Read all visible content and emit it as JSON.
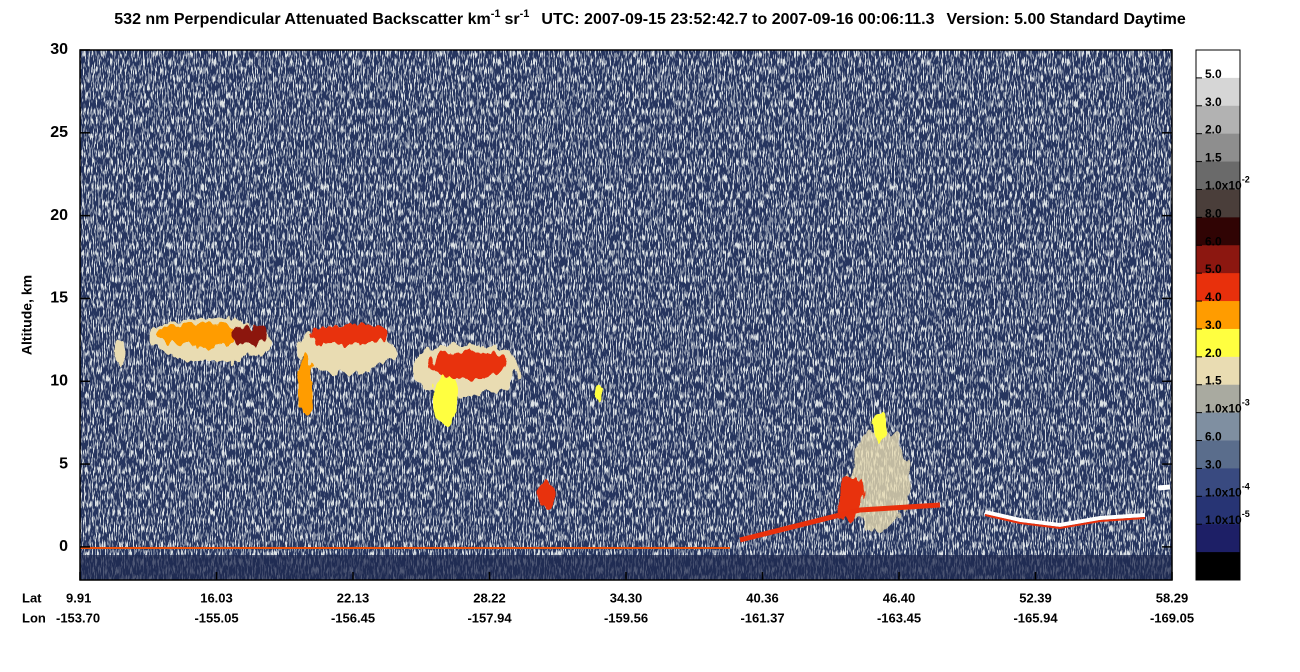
{
  "chart_data": {
    "type": "curtain",
    "title": {
      "main": "532 nm Perpendicular Attenuated Backscatter km",
      "exp1": "-1",
      "unit2": "sr",
      "exp2": "-1",
      "utc": "UTC: 2007-09-15 23:52:42.7 to 2007-09-16 00:06:11.3",
      "version": "Version: 5.00 Standard Daytime"
    },
    "ylabel": "Altitude, km",
    "ylim": [
      -2,
      30
    ],
    "yticks": [
      0,
      5,
      10,
      15,
      20,
      25,
      30
    ],
    "x": {
      "lat_label": "Lat",
      "lon_label": "Lon",
      "lat": [
        "9.91",
        "16.03",
        "22.13",
        "28.22",
        "34.30",
        "40.36",
        "46.40",
        "52.39",
        "58.29"
      ],
      "lon": [
        "-153.70",
        "-155.05",
        "-156.45",
        "-157.94",
        "-159.56",
        "-161.37",
        "-163.45",
        "-165.94",
        "-169.05"
      ]
    },
    "colorbar": {
      "colors": [
        "#ffffff",
        "#d6d6d6",
        "#b2b2b2",
        "#8e8e8e",
        "#6a6a6a",
        "#4a3e3a",
        "#300404",
        "#8c1710",
        "#e8300c",
        "#ff9c00",
        "#ffff40",
        "#e9dcb2",
        "#a9aaa0",
        "#7f8fa1",
        "#5a6d8c",
        "#394a80",
        "#273474",
        "#1d1f66",
        "#000000"
      ],
      "labels": [
        {
          "text": "5.0"
        },
        {
          "text": "3.0"
        },
        {
          "text": "2.0"
        },
        {
          "text": "1.5"
        },
        {
          "text": "1.0x10",
          "sup": "-2"
        },
        {
          "text": "8.0"
        },
        {
          "text": "6.0"
        },
        {
          "text": "5.0"
        },
        {
          "text": "4.0"
        },
        {
          "text": "3.0"
        },
        {
          "text": "2.0"
        },
        {
          "text": "1.5"
        },
        {
          "text": "1.0x10",
          "sup": "-3"
        },
        {
          "text": "6.0"
        },
        {
          "text": "3.0"
        },
        {
          "text": "1.0x10",
          "sup": "-4"
        },
        {
          "text": "1.0x10",
          "sup": "-5"
        }
      ]
    }
  }
}
